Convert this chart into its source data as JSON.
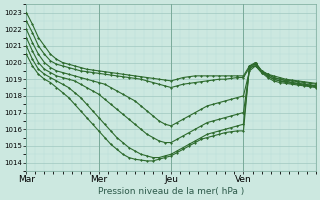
{
  "xlabel": "Pression niveau de la mer( hPa )",
  "bg_color": "#cce8e0",
  "plot_bg_color": "#cce8e0",
  "grid_color_major": "#a0c8c0",
  "grid_color_minor": "#b8dcd8",
  "line_color": "#2d6a2d",
  "ylim": [
    1013.5,
    1023.5
  ],
  "yticks": [
    1014,
    1015,
    1016,
    1017,
    1018,
    1019,
    1020,
    1021,
    1022,
    1023
  ],
  "day_labels": [
    "Mar",
    "Mer",
    "Jeu",
    "Ven"
  ],
  "day_positions": [
    0,
    72,
    144,
    216
  ],
  "xlim": [
    0,
    288
  ],
  "lines": [
    {
      "x": [
        0,
        6,
        12,
        18,
        24,
        30,
        36,
        42,
        48,
        54,
        60,
        66,
        72,
        78,
        84,
        90,
        96,
        102,
        108,
        114,
        120,
        126,
        132,
        138,
        144,
        150,
        156,
        162,
        168,
        174,
        180,
        186,
        192,
        198,
        204,
        210,
        216,
        222,
        228,
        234,
        240,
        246,
        252,
        258,
        264,
        270,
        276,
        282,
        288
      ],
      "y": [
        1023.0,
        1022.3,
        1021.5,
        1021.0,
        1020.5,
        1020.2,
        1020.0,
        1019.9,
        1019.8,
        1019.7,
        1019.6,
        1019.55,
        1019.5,
        1019.45,
        1019.4,
        1019.35,
        1019.3,
        1019.25,
        1019.2,
        1019.15,
        1019.1,
        1019.05,
        1019.0,
        1018.95,
        1018.9,
        1019.0,
        1019.1,
        1019.15,
        1019.2,
        1019.2,
        1019.2,
        1019.2,
        1019.2,
        1019.2,
        1019.2,
        1019.2,
        1019.2,
        1019.8,
        1019.9,
        1019.5,
        1019.2,
        1019.0,
        1018.9,
        1018.85,
        1018.8,
        1018.75,
        1018.7,
        1018.65,
        1018.6
      ],
      "lw": 0.8
    },
    {
      "x": [
        0,
        6,
        12,
        18,
        24,
        30,
        36,
        42,
        48,
        54,
        60,
        66,
        72,
        78,
        84,
        90,
        96,
        102,
        108,
        114,
        120,
        126,
        132,
        138,
        144,
        150,
        156,
        162,
        168,
        174,
        180,
        186,
        192,
        198,
        204,
        210,
        216,
        222,
        228,
        234,
        240,
        246,
        252,
        258,
        264,
        270,
        276,
        282,
        288
      ],
      "y": [
        1022.5,
        1021.8,
        1021.0,
        1020.5,
        1020.1,
        1019.9,
        1019.8,
        1019.7,
        1019.6,
        1019.5,
        1019.45,
        1019.4,
        1019.35,
        1019.3,
        1019.25,
        1019.2,
        1019.15,
        1019.1,
        1019.05,
        1019.0,
        1018.9,
        1018.8,
        1018.7,
        1018.6,
        1018.5,
        1018.6,
        1018.7,
        1018.75,
        1018.8,
        1018.85,
        1018.9,
        1018.95,
        1019.0,
        1019.0,
        1019.05,
        1019.1,
        1019.1,
        1019.7,
        1019.8,
        1019.4,
        1019.1,
        1018.9,
        1018.8,
        1018.75,
        1018.7,
        1018.65,
        1018.6,
        1018.55,
        1018.5
      ],
      "lw": 0.8
    },
    {
      "x": [
        0,
        6,
        12,
        18,
        24,
        30,
        36,
        42,
        48,
        54,
        60,
        66,
        72,
        78,
        84,
        90,
        96,
        102,
        108,
        114,
        120,
        126,
        132,
        138,
        144,
        150,
        156,
        162,
        168,
        174,
        180,
        186,
        192,
        198,
        204,
        210,
        216,
        222,
        228,
        234,
        240,
        246,
        252,
        258,
        264,
        270,
        276,
        282,
        288
      ],
      "y": [
        1022.0,
        1021.2,
        1020.5,
        1020.0,
        1019.7,
        1019.5,
        1019.4,
        1019.3,
        1019.2,
        1019.1,
        1019.0,
        1018.9,
        1018.8,
        1018.7,
        1018.5,
        1018.3,
        1018.1,
        1017.9,
        1017.7,
        1017.4,
        1017.1,
        1016.8,
        1016.5,
        1016.3,
        1016.2,
        1016.4,
        1016.6,
        1016.8,
        1017.0,
        1017.2,
        1017.4,
        1017.5,
        1017.6,
        1017.7,
        1017.8,
        1017.9,
        1018.0,
        1019.5,
        1019.8,
        1019.4,
        1019.2,
        1019.0,
        1018.9,
        1018.8,
        1018.75,
        1018.7,
        1018.65,
        1018.6,
        1018.55
      ],
      "lw": 0.8
    },
    {
      "x": [
        0,
        6,
        12,
        18,
        24,
        30,
        36,
        42,
        48,
        54,
        60,
        66,
        72,
        78,
        84,
        90,
        96,
        102,
        108,
        114,
        120,
        126,
        132,
        138,
        144,
        150,
        156,
        162,
        168,
        174,
        180,
        186,
        192,
        198,
        204,
        210,
        216,
        222,
        228,
        234,
        240,
        246,
        252,
        258,
        264,
        270,
        276,
        282,
        288
      ],
      "y": [
        1021.5,
        1020.7,
        1020.0,
        1019.6,
        1019.4,
        1019.2,
        1019.1,
        1019.0,
        1018.9,
        1018.7,
        1018.5,
        1018.3,
        1018.1,
        1017.8,
        1017.5,
        1017.2,
        1016.9,
        1016.6,
        1016.3,
        1016.0,
        1015.7,
        1015.5,
        1015.3,
        1015.2,
        1015.2,
        1015.4,
        1015.6,
        1015.8,
        1016.0,
        1016.2,
        1016.4,
        1016.5,
        1016.6,
        1016.7,
        1016.8,
        1016.9,
        1017.0,
        1019.6,
        1019.9,
        1019.5,
        1019.3,
        1019.1,
        1019.0,
        1018.9,
        1018.8,
        1018.75,
        1018.7,
        1018.65,
        1018.6
      ],
      "lw": 0.8
    },
    {
      "x": [
        0,
        6,
        12,
        18,
        24,
        30,
        36,
        42,
        48,
        54,
        60,
        66,
        72,
        78,
        84,
        90,
        96,
        102,
        108,
        114,
        120,
        126,
        132,
        138,
        144,
        150,
        156,
        162,
        168,
        174,
        180,
        186,
        192,
        198,
        204,
        210,
        216,
        222,
        228,
        234,
        240,
        246,
        252,
        258,
        264,
        270,
        276,
        282,
        288
      ],
      "y": [
        1021.0,
        1020.2,
        1019.6,
        1019.3,
        1019.1,
        1018.9,
        1018.7,
        1018.5,
        1018.2,
        1017.9,
        1017.5,
        1017.1,
        1016.7,
        1016.3,
        1015.9,
        1015.5,
        1015.2,
        1014.9,
        1014.7,
        1014.5,
        1014.4,
        1014.3,
        1014.3,
        1014.4,
        1014.5,
        1014.7,
        1014.9,
        1015.1,
        1015.3,
        1015.5,
        1015.7,
        1015.8,
        1015.9,
        1016.0,
        1016.1,
        1016.2,
        1016.3,
        1019.7,
        1020.0,
        1019.5,
        1019.3,
        1019.1,
        1019.0,
        1018.95,
        1018.9,
        1018.85,
        1018.8,
        1018.75,
        1018.7
      ],
      "lw": 0.8
    },
    {
      "x": [
        0,
        6,
        12,
        18,
        24,
        30,
        36,
        42,
        48,
        54,
        60,
        66,
        72,
        78,
        84,
        90,
        96,
        102,
        108,
        114,
        120,
        126,
        132,
        138,
        144,
        150,
        156,
        162,
        168,
        174,
        180,
        186,
        192,
        198,
        204,
        210,
        216,
        222,
        228,
        234,
        240,
        246,
        252,
        258,
        264,
        270,
        276,
        282,
        288
      ],
      "y": [
        1020.5,
        1019.8,
        1019.3,
        1019.0,
        1018.8,
        1018.5,
        1018.2,
        1017.9,
        1017.5,
        1017.1,
        1016.7,
        1016.3,
        1015.9,
        1015.5,
        1015.1,
        1014.8,
        1014.5,
        1014.3,
        1014.2,
        1014.15,
        1014.1,
        1014.1,
        1014.2,
        1014.3,
        1014.4,
        1014.6,
        1014.8,
        1015.0,
        1015.2,
        1015.4,
        1015.5,
        1015.6,
        1015.7,
        1015.8,
        1015.85,
        1015.9,
        1015.9,
        1019.8,
        1020.0,
        1019.5,
        1019.3,
        1019.2,
        1019.1,
        1019.0,
        1018.95,
        1018.9,
        1018.85,
        1018.8,
        1018.75
      ],
      "lw": 0.8
    }
  ]
}
